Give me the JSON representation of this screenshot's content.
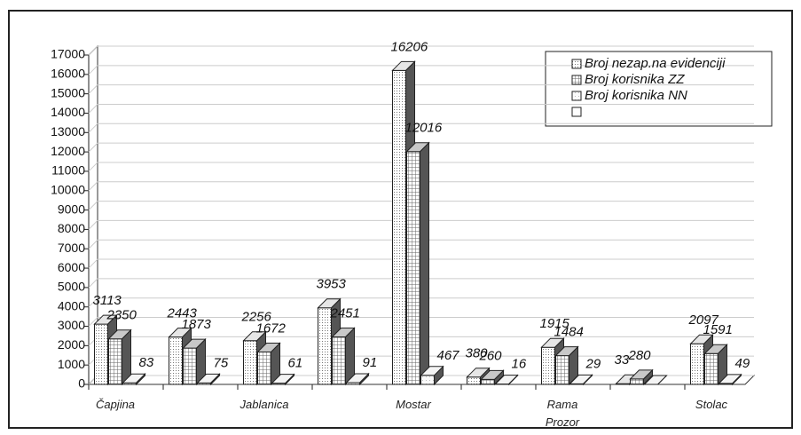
{
  "chart_data": {
    "type": "bar3d",
    "categories": [
      "Čapjina",
      null,
      "Jablanica",
      null,
      "Mostar",
      null,
      "Rama\nProzor",
      null,
      "Stolac"
    ],
    "series": [
      {
        "name": "Broj nezap.na evidenciji",
        "color": "#e6e6e6",
        "values": [
          3113,
          2443,
          2256,
          3953,
          16206,
          380,
          1915,
          33,
          2097
        ]
      },
      {
        "name": "Broj korisnika ZZ",
        "color": "#c8c8c8",
        "values": [
          2350,
          1873,
          1672,
          2451,
          12016,
          260,
          1484,
          280,
          1591
        ]
      },
      {
        "name": "Broj korisnika  NN",
        "color": "#f4f4f4",
        "values": [
          83,
          75,
          61,
          91,
          467,
          16,
          29,
          0,
          49
        ],
        "value_labels": [
          "83",
          "75",
          "61",
          "91",
          "467",
          "16",
          "29",
          null,
          "49"
        ]
      }
    ],
    "ylim": [
      0,
      17000
    ],
    "yticks": [
      0,
      1000,
      2000,
      3000,
      4000,
      5000,
      6000,
      7000,
      8000,
      9000,
      10000,
      11000,
      12000,
      13000,
      14000,
      15000,
      16000,
      17000
    ],
    "grid": true
  }
}
